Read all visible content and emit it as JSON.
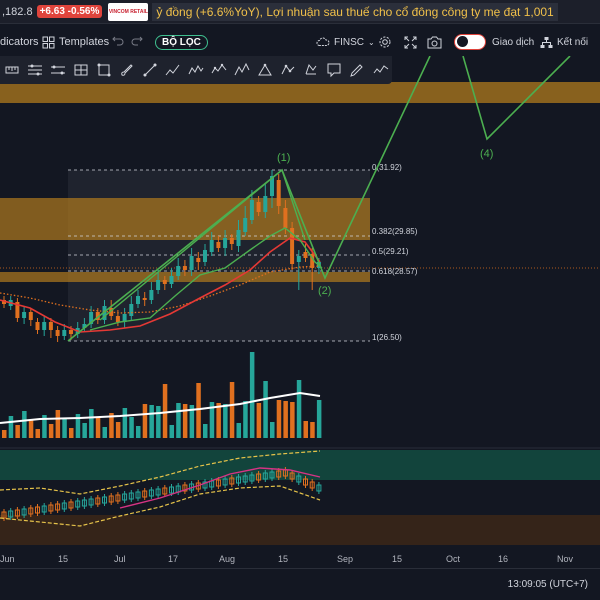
{
  "ticker": {
    "price": ",182.8",
    "change": "+6.63 -0.56%",
    "logo_text": "VINCOM RETAIL",
    "news": "ỷ đồng (+6.6%YoY), Lợi nhuận sau thuế cho cổ đông công ty mẹ đạt 1,001"
  },
  "toolbar": {
    "indicators_label": "dicators",
    "templates_label": "Templates",
    "filter_label": "BỘ LỌC",
    "symbol_label": "FINSC",
    "trade_label": "Giao dịch",
    "connect_label": "Kết nối"
  },
  "drawing_tools": [
    "ruler-icon",
    "horizontal-lines-icon",
    "horizontal-ray-icon",
    "rectangle-icon",
    "rectangle-select-icon",
    "brush-icon",
    "trendline-icon",
    "path-icon",
    "zigzag-icon",
    "pattern-icon",
    "elliott-icon",
    "triangle-icon",
    "polyline-icon",
    "shapes-icon",
    "note-icon",
    "pencil-icon",
    "wave-icon"
  ],
  "fib_levels": [
    {
      "ratio": "0",
      "price": "31.92"
    },
    {
      "ratio": "0.382",
      "price": "29.85"
    },
    {
      "ratio": "0.5",
      "price": "29.21"
    },
    {
      "ratio": "0.618",
      "price": "28.57"
    },
    {
      "ratio": "1",
      "price": "26.50"
    }
  ],
  "wave_labels": [
    "(1)",
    "(2)",
    "(4)"
  ],
  "x_axis": [
    "Jun",
    "15",
    "Jul",
    "17",
    "Aug",
    "15",
    "Sep",
    "15",
    "Oct",
    "16",
    "Nov"
  ],
  "footer": {
    "clock": "13:09:05 (UTC+7)"
  },
  "colors": {
    "up": "#26a69a",
    "down": "#e0701f",
    "wave": "#4caf50",
    "zone": "#b07b1e"
  }
}
